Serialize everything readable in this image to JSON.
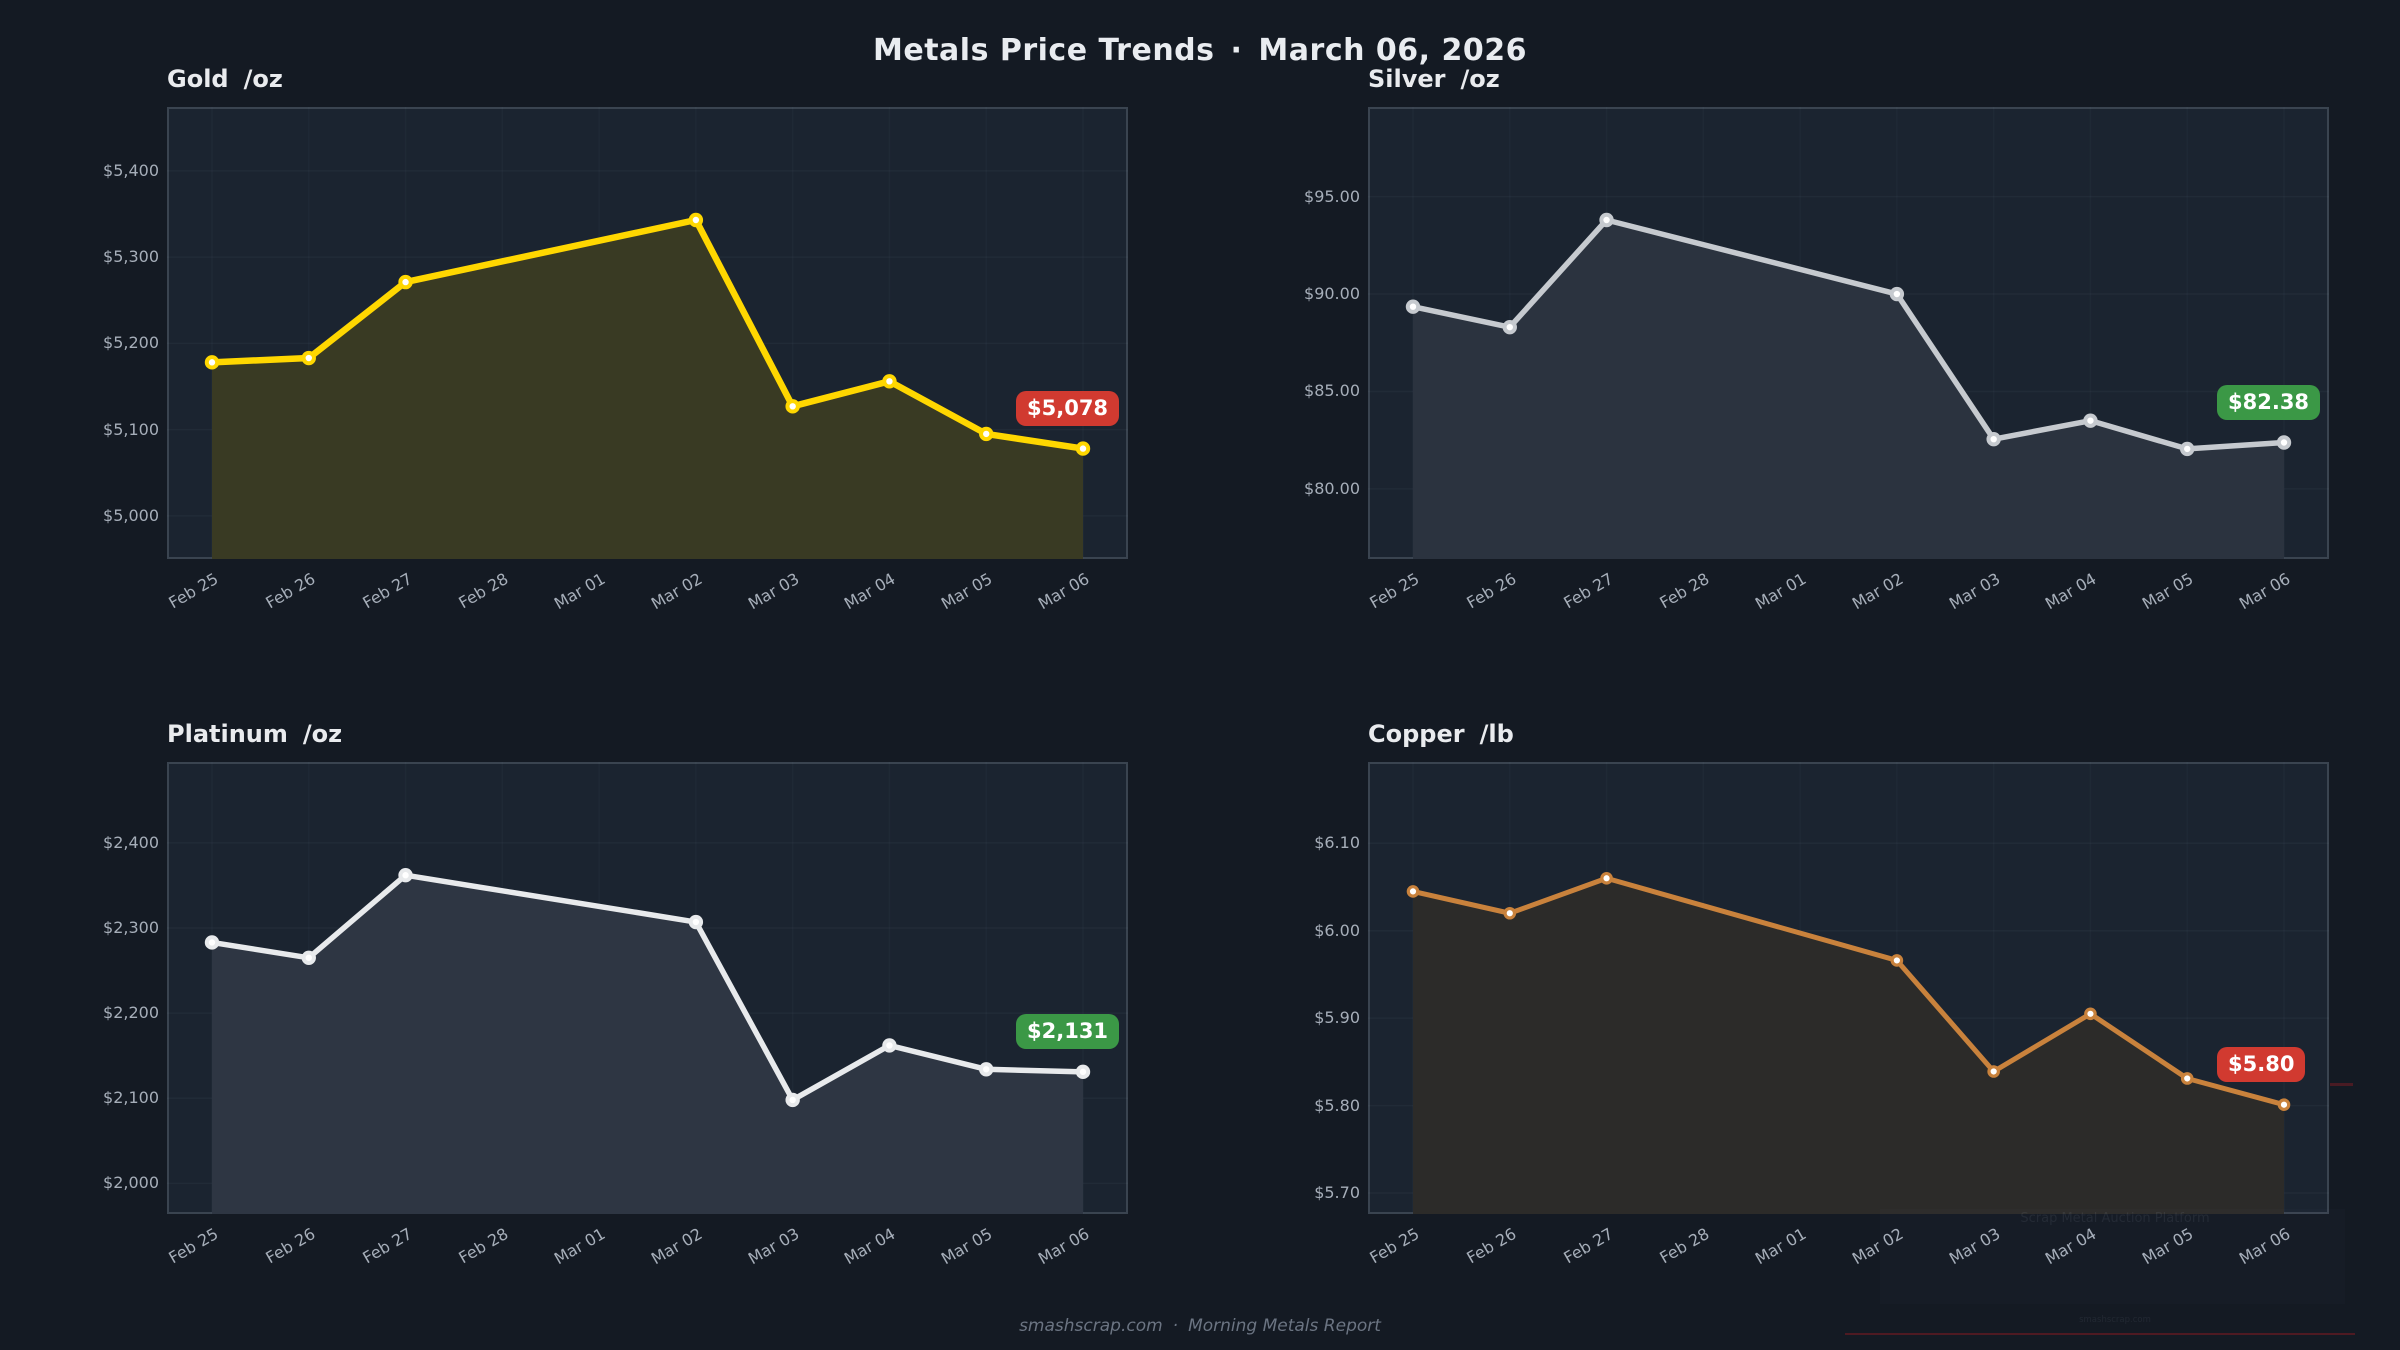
{
  "header": {
    "title": "Metals Price Trends",
    "separator": "·",
    "date": "March 06, 2026"
  },
  "footer": {
    "site": "smashscrap.com",
    "separator": "·",
    "report": "Morning Metals Report"
  },
  "watermark": {
    "line1": "Scrap Metal Auction Platform",
    "line2": "smashscrap.com"
  },
  "categories": [
    "Feb 25",
    "Feb 26",
    "Feb 27",
    "Feb 28",
    "Mar 01",
    "Mar 02",
    "Mar 03",
    "Mar 04",
    "Mar 05",
    "Mar 06"
  ],
  "theme": {
    "page_bg": "#141a23",
    "panel_bg": "#1b2430",
    "panel_border": "#3a4450",
    "tick_color": "#a6aeb9",
    "title_color": "#e9ecf0",
    "badge_red": "#d13a30",
    "badge_green": "#3b9846"
  },
  "chart_data": [
    {
      "type": "line",
      "metal": "Gold",
      "unit": "/oz",
      "dates": [
        "Feb 25",
        "Feb 26",
        "Feb 27",
        "Mar 02",
        "Mar 03",
        "Mar 04",
        "Mar 05",
        "Mar 06"
      ],
      "day_index": [
        0,
        1,
        2,
        5,
        6,
        7,
        8,
        9
      ],
      "values": [
        5178,
        5183,
        5271,
        5343,
        5127,
        5156,
        5095,
        5078
      ],
      "last_price_label": "$5,078",
      "badge_color": "#d13a30",
      "line_color": "#ffd700",
      "fill_color": "#393a23",
      "line_width": 6.5,
      "marker_radius": 5.2,
      "marker_stroke": 4,
      "ylim": [
        4950,
        5474
      ],
      "yticks": [
        {
          "v": 5400,
          "label": "$5,400"
        },
        {
          "v": 5300,
          "label": "$5,300"
        },
        {
          "v": 5200,
          "label": "$5,200"
        },
        {
          "v": 5100,
          "label": "$5,100"
        },
        {
          "v": 5000,
          "label": "$5,000"
        }
      ]
    },
    {
      "type": "line",
      "metal": "Silver",
      "unit": "/oz",
      "dates": [
        "Feb 25",
        "Feb 26",
        "Feb 27",
        "Mar 02",
        "Mar 03",
        "Mar 04",
        "Mar 05",
        "Mar 06"
      ],
      "day_index": [
        0,
        1,
        2,
        5,
        6,
        7,
        8,
        9
      ],
      "values": [
        89.35,
        88.3,
        93.8,
        90.0,
        82.55,
        83.5,
        82.05,
        82.38
      ],
      "last_price_label": "$82.38",
      "badge_color": "#3b9846",
      "line_color": "#c6cacf",
      "fill_color": "#2b333f",
      "line_width": 5.5,
      "marker_radius": 5.2,
      "marker_stroke": 4,
      "ylim": [
        76.4,
        99.6
      ],
      "yticks": [
        {
          "v": 95,
          "label": "$95.00"
        },
        {
          "v": 90,
          "label": "$90.00"
        },
        {
          "v": 85,
          "label": "$85.00"
        },
        {
          "v": 80,
          "label": "$80.00"
        }
      ]
    },
    {
      "type": "line",
      "metal": "Platinum",
      "unit": "/oz",
      "dates": [
        "Feb 25",
        "Feb 26",
        "Feb 27",
        "Mar 02",
        "Mar 03",
        "Mar 04",
        "Mar 05",
        "Mar 06"
      ],
      "day_index": [
        0,
        1,
        2,
        5,
        6,
        7,
        8,
        9
      ],
      "values": [
        2283,
        2265,
        2362,
        2307,
        2098,
        2162,
        2134,
        2131
      ],
      "last_price_label": "$2,131",
      "badge_color": "#3b9846",
      "line_color": "#e8eaec",
      "fill_color": "#2e3643",
      "line_width": 5.5,
      "marker_radius": 5.2,
      "marker_stroke": 4,
      "ylim": [
        1964,
        2495
      ],
      "yticks": [
        {
          "v": 2400,
          "label": "$2,400"
        },
        {
          "v": 2300,
          "label": "$2,300"
        },
        {
          "v": 2200,
          "label": "$2,200"
        },
        {
          "v": 2100,
          "label": "$2,100"
        },
        {
          "v": 2000,
          "label": "$2,000"
        }
      ]
    },
    {
      "type": "line",
      "metal": "Copper",
      "unit": "/lb",
      "dates": [
        "Feb 25",
        "Feb 26",
        "Feb 27",
        "Mar 02",
        "Mar 03",
        "Mar 04",
        "Mar 05",
        "Mar 06"
      ],
      "day_index": [
        0,
        1,
        2,
        5,
        6,
        7,
        8,
        9
      ],
      "values": [
        6.045,
        6.02,
        6.06,
        5.966,
        5.839,
        5.905,
        5.831,
        5.801
      ],
      "last_price_label": "$5.80",
      "badge_color": "#d13a30",
      "line_color": "#c9823c",
      "fill_color": "#2c2b29",
      "line_width": 5,
      "marker_radius": 4.7,
      "marker_stroke": 3.2,
      "ylim": [
        5.676,
        6.193
      ],
      "yticks": [
        {
          "v": 6.1,
          "label": "$6.10"
        },
        {
          "v": 6.0,
          "label": "$6.00"
        },
        {
          "v": 5.9,
          "label": "$5.90"
        },
        {
          "v": 5.8,
          "label": "$5.80"
        },
        {
          "v": 5.7,
          "label": "$5.70"
        }
      ]
    }
  ]
}
